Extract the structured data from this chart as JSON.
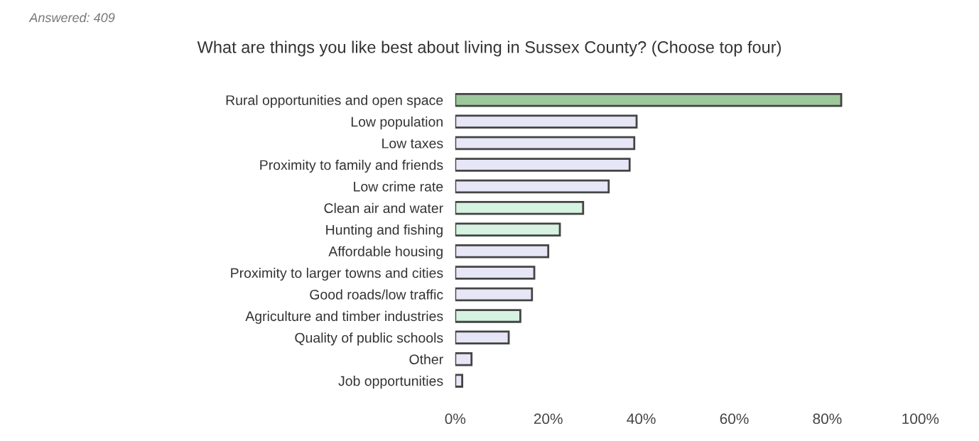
{
  "chart_data": {
    "type": "bar",
    "orientation": "horizontal",
    "title": "What are things you like best about living in Sussex County? (Choose top four)",
    "annotations": [
      "Answered: 409"
    ],
    "categories": [
      "Rural opportunities and open space",
      "Low population",
      "Low taxes",
      "Proximity to family and friends",
      "Low crime rate",
      "Clean air and water",
      "Hunting and fishing",
      "Affordable housing",
      "Proximity to larger towns and cities",
      "Good roads/low traffic",
      "Agriculture and timber industries",
      "Quality of public schools",
      "Other",
      "Job opportunities"
    ],
    "values": [
      83,
      39,
      38.5,
      37.5,
      33,
      27.5,
      22.5,
      20,
      17,
      16.5,
      14,
      11.5,
      3.5,
      1.5
    ],
    "colors": [
      "#9cc89c",
      "#e6e6f6",
      "#e6e6f6",
      "#e6e6f6",
      "#e6e6f6",
      "#d6f2e0",
      "#d6f2e0",
      "#e6e6f6",
      "#e6e6f6",
      "#e6e6f6",
      "#d6f2e0",
      "#e6e6f6",
      "#e6e6f6",
      "#e6e6f6"
    ],
    "xlim": [
      0,
      100
    ],
    "xticks": [
      {
        "value": 0,
        "label": "0%"
      },
      {
        "value": 20,
        "label": "20%"
      },
      {
        "value": 40,
        "label": "40%"
      },
      {
        "value": 60,
        "label": "60%"
      },
      {
        "value": 80,
        "label": "80%"
      },
      {
        "value": 100,
        "label": "100%"
      }
    ],
    "grid": false,
    "legend": false
  }
}
